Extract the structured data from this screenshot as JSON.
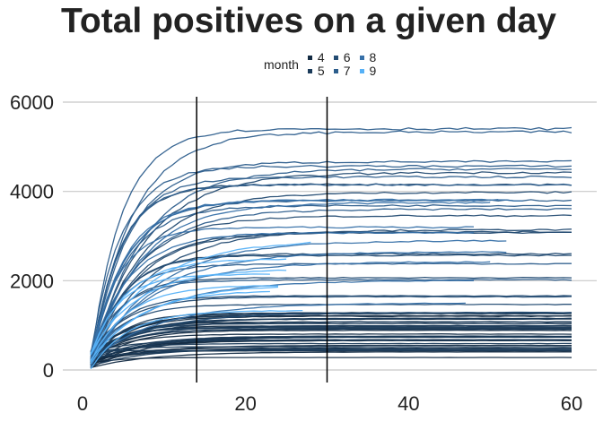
{
  "chart_data": {
    "type": "line",
    "title": "Total positives on a given day",
    "xlabel": "",
    "ylabel": "",
    "xlim": [
      0,
      60
    ],
    "ylim": [
      0,
      6000
    ],
    "x_ticks": [
      0,
      20,
      40,
      60
    ],
    "y_ticks": [
      0,
      2000,
      4000,
      6000
    ],
    "grid": "horizontal",
    "vlines": [
      14,
      30
    ],
    "legend": {
      "title": "month",
      "placement": "top",
      "entries": [
        {
          "label": "4",
          "color": "#132B43"
        },
        {
          "label": "5",
          "color": "#1B3B5A"
        },
        {
          "label": "6",
          "color": "#234B72"
        },
        {
          "label": "7",
          "color": "#2C5D8C"
        },
        {
          "label": "8",
          "color": "#3670A8"
        },
        {
          "label": "9",
          "color": "#56B1F7"
        }
      ]
    },
    "series": [
      {
        "month": "4",
        "count": 20,
        "final_min": 280,
        "final_max": 1300,
        "x_end": 60
      },
      {
        "month": "5",
        "count": 18,
        "final_min": 300,
        "final_max": 1300,
        "x_end": 60
      },
      {
        "month": "6",
        "count": 14,
        "final_min": 1200,
        "final_max": 4500,
        "x_end": 60
      },
      {
        "month": "7",
        "count": 12,
        "final_min": 2000,
        "final_max": 5800,
        "x_end": 60
      },
      {
        "month": "8",
        "count": 10,
        "final_min": 1500,
        "final_max": 4000,
        "x_end": 55
      },
      {
        "month": "9",
        "count": 8,
        "final_min": 1000,
        "final_max": 3000,
        "x_end": 30
      }
    ]
  }
}
